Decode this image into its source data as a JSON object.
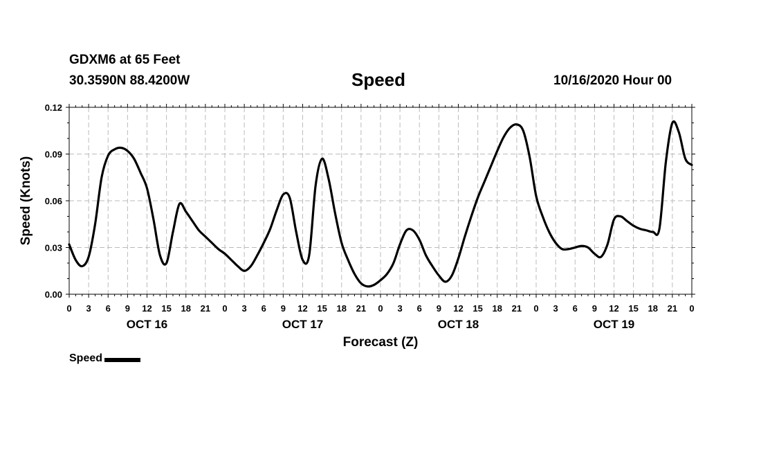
{
  "header": {
    "station": "GDXM6 at 65 Feet",
    "coords": "30.3590N 88.4200W",
    "title": "Speed",
    "timestamp": "10/16/2020 Hour 00"
  },
  "legend": {
    "label": "Speed",
    "color": "#000000"
  },
  "chart_data": {
    "type": "line",
    "title": "Speed",
    "xlabel": "Forecast (Z)",
    "ylabel": "Speed (Knots)",
    "xlim": [
      0,
      96
    ],
    "ylim": [
      0,
      0.12
    ],
    "yticks": [
      "0.00",
      "0.03",
      "0.06",
      "0.09",
      "0.12"
    ],
    "ytick_values": [
      0,
      0.03,
      0.06,
      0.09,
      0.12
    ],
    "xtick_labels": [
      "0",
      "3",
      "6",
      "9",
      "12",
      "15",
      "18",
      "21",
      "0",
      "3",
      "6",
      "9",
      "12",
      "15",
      "18",
      "21",
      "0",
      "3",
      "6",
      "9",
      "12",
      "15",
      "18",
      "21",
      "0",
      "3",
      "6",
      "9",
      "12",
      "15",
      "18",
      "21",
      "0"
    ],
    "day_labels": [
      {
        "label": "OCT 16",
        "hour": 12
      },
      {
        "label": "OCT 17",
        "hour": 36
      },
      {
        "label": "OCT 18",
        "hour": 60
      },
      {
        "label": "OCT 19",
        "hour": 84
      }
    ],
    "grid": true,
    "series": [
      {
        "name": "Speed",
        "color": "#000000",
        "x": [
          0,
          1,
          2,
          3,
          4,
          5,
          6,
          7,
          8,
          9,
          10,
          11,
          12,
          13,
          14,
          15,
          16,
          17,
          18,
          19,
          20,
          21,
          22,
          23,
          24,
          25,
          26,
          27,
          28,
          29,
          30,
          31,
          32,
          33,
          34,
          35,
          36,
          37,
          38,
          39,
          40,
          41,
          42,
          43,
          44,
          45,
          46,
          47,
          48,
          49,
          50,
          51,
          52,
          53,
          54,
          55,
          56,
          57,
          58,
          59,
          60,
          61,
          62,
          63,
          64,
          65,
          66,
          67,
          68,
          69,
          70,
          71,
          72,
          73,
          74,
          75,
          76,
          77,
          78,
          79,
          80,
          81,
          82,
          83,
          84,
          85,
          86,
          87,
          88,
          89,
          90,
          91,
          92,
          93,
          94,
          95,
          96
        ],
        "values": [
          0.032,
          0.022,
          0.018,
          0.024,
          0.045,
          0.075,
          0.089,
          0.093,
          0.094,
          0.092,
          0.087,
          0.078,
          0.068,
          0.048,
          0.025,
          0.02,
          0.04,
          0.058,
          0.053,
          0.047,
          0.041,
          0.037,
          0.033,
          0.029,
          0.026,
          0.022,
          0.018,
          0.015,
          0.018,
          0.025,
          0.033,
          0.042,
          0.054,
          0.064,
          0.062,
          0.04,
          0.022,
          0.025,
          0.07,
          0.087,
          0.074,
          0.052,
          0.033,
          0.022,
          0.013,
          0.007,
          0.005,
          0.006,
          0.009,
          0.013,
          0.02,
          0.032,
          0.041,
          0.041,
          0.035,
          0.025,
          0.018,
          0.012,
          0.008,
          0.012,
          0.023,
          0.037,
          0.05,
          0.062,
          0.072,
          0.082,
          0.092,
          0.101,
          0.107,
          0.109,
          0.105,
          0.088,
          0.063,
          0.05,
          0.04,
          0.033,
          0.029,
          0.029,
          0.03,
          0.031,
          0.03,
          0.026,
          0.024,
          0.032,
          0.048,
          0.05,
          0.047,
          0.044,
          0.042,
          0.041,
          0.04,
          0.042,
          0.085,
          0.11,
          0.104,
          0.087,
          0.083
        ]
      }
    ]
  }
}
